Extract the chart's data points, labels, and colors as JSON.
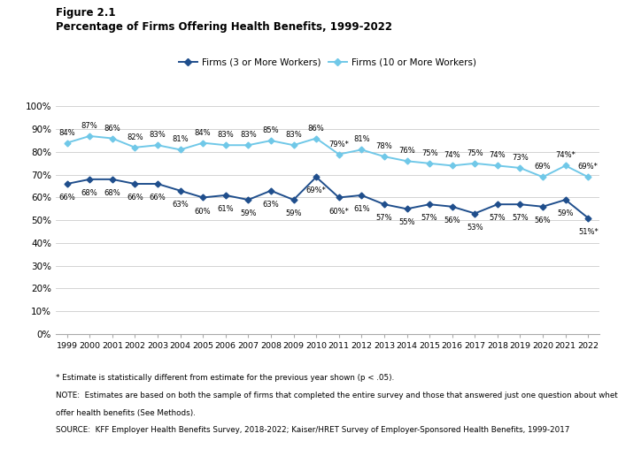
{
  "years": [
    1999,
    2000,
    2001,
    2002,
    2003,
    2004,
    2005,
    2006,
    2007,
    2008,
    2009,
    2010,
    2011,
    2012,
    2013,
    2014,
    2015,
    2016,
    2017,
    2018,
    2019,
    2020,
    2021,
    2022
  ],
  "firms_3plus": [
    66,
    68,
    68,
    66,
    66,
    63,
    60,
    61,
    59,
    63,
    59,
    69,
    60,
    61,
    57,
    55,
    57,
    56,
    53,
    57,
    57,
    56,
    59,
    51
  ],
  "firms_10plus": [
    84,
    87,
    86,
    82,
    83,
    81,
    84,
    83,
    83,
    85,
    83,
    86,
    79,
    81,
    78,
    76,
    75,
    74,
    75,
    74,
    73,
    69,
    74,
    69
  ],
  "firms_3plus_star": [
    false,
    false,
    false,
    false,
    false,
    false,
    false,
    false,
    false,
    false,
    false,
    true,
    true,
    false,
    false,
    false,
    false,
    false,
    false,
    false,
    false,
    false,
    false,
    true
  ],
  "firms_10plus_star": [
    false,
    false,
    false,
    false,
    false,
    false,
    false,
    false,
    false,
    false,
    false,
    false,
    true,
    false,
    false,
    false,
    false,
    false,
    false,
    false,
    false,
    false,
    true,
    true
  ],
  "color_3plus": "#1f4e8c",
  "color_10plus": "#70c8e8",
  "title_line1": "Figure 2.1",
  "title_line2": "Percentage of Firms Offering Health Benefits, 1999-2022",
  "legend_label_3plus": "Firms (3 or More Workers)",
  "legend_label_10plus": "Firms (10 or More Workers)",
  "ylabel_values": [
    0,
    10,
    20,
    30,
    40,
    50,
    60,
    70,
    80,
    90,
    100
  ],
  "ylabel_ticks": [
    "0%",
    "10%",
    "20%",
    "30%",
    "40%",
    "50%",
    "60%",
    "70%",
    "80%",
    "90%",
    "100%"
  ],
  "ylim": [
    0,
    106
  ],
  "footnote1": "* Estimate is statistically different from estimate for the previous year shown (p < .05).",
  "footnote2": "NOTE:  Estimates are based on both the sample of firms that completed the entire survey and those that answered just one question about whether they offer health benefits (See Methods).",
  "footnote3": "SOURCE:  KFF Employer Health Benefits Survey, 2018-2022; Kaiser/HRET Survey of Employer-Sponsored Health Benefits, 1999-2017"
}
